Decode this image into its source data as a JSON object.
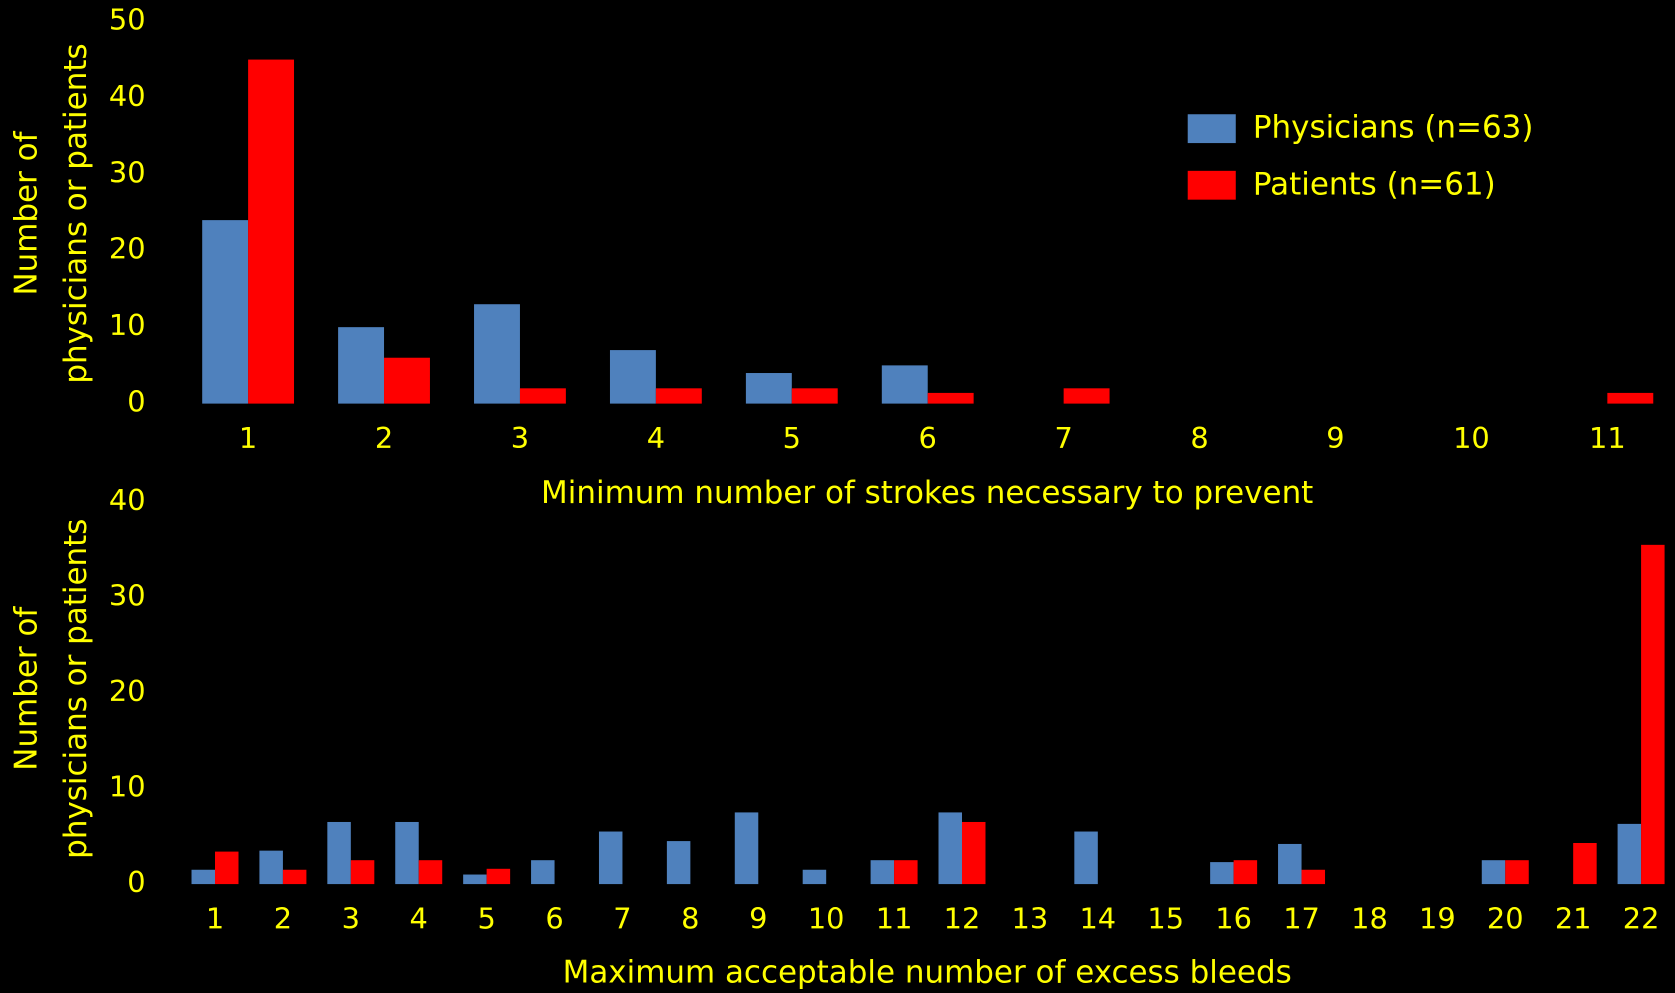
{
  "chart_data": [
    {
      "type": "bar",
      "categories": [
        "1",
        "2",
        "3",
        "4",
        "5",
        "6",
        "7",
        "8",
        "9",
        "10",
        "11"
      ],
      "series": [
        {
          "name": "Physicians (n=63)",
          "color": "#4f81bd",
          "values": [
            24,
            10,
            13,
            7,
            4,
            5,
            0,
            0,
            0,
            0,
            0
          ]
        },
        {
          "name": "Patients (n=61)",
          "color": "#ff0000",
          "values": [
            45,
            6,
            2,
            2,
            2,
            1.4,
            2,
            0,
            0,
            0,
            1.4
          ]
        }
      ],
      "xlabel": "Minimum number of strokes necessary to prevent",
      "ylabel": [
        "Number of",
        "physicians or patients"
      ],
      "ylim": [
        0,
        50
      ],
      "yticks": [
        0,
        10,
        20,
        30,
        40,
        50
      ],
      "legend": "upper right"
    },
    {
      "type": "bar",
      "categories": [
        "1",
        "2",
        "3",
        "4",
        "5",
        "6",
        "7",
        "8",
        "9",
        "10",
        "11",
        "12",
        "13",
        "14",
        "15",
        "16",
        "17",
        "18",
        "19",
        "20",
        "21",
        "22"
      ],
      "series": [
        {
          "color": "#4f81bd",
          "values": [
            1.5,
            3.5,
            6.5,
            6.5,
            1,
            2.5,
            5.5,
            4.5,
            7.5,
            1.5,
            2.5,
            7.5,
            0,
            5.5,
            0,
            2.3,
            4.2,
            0,
            0,
            2.5,
            0,
            6.3
          ]
        },
        {
          "color": "#ff0000",
          "values": [
            3.4,
            1.5,
            2.5,
            2.5,
            1.6,
            0,
            0,
            0,
            0,
            0,
            2.5,
            6.5,
            0,
            0,
            0,
            2.5,
            1.5,
            0,
            0,
            2.5,
            4.3,
            35.5
          ]
        }
      ],
      "xlabel": "Maximum acceptable number of excess bleeds",
      "ylabel": [
        "Number of",
        "physicians or patients"
      ],
      "ylim": [
        0,
        40
      ],
      "yticks": [
        0,
        10,
        20,
        30,
        40
      ]
    }
  ]
}
